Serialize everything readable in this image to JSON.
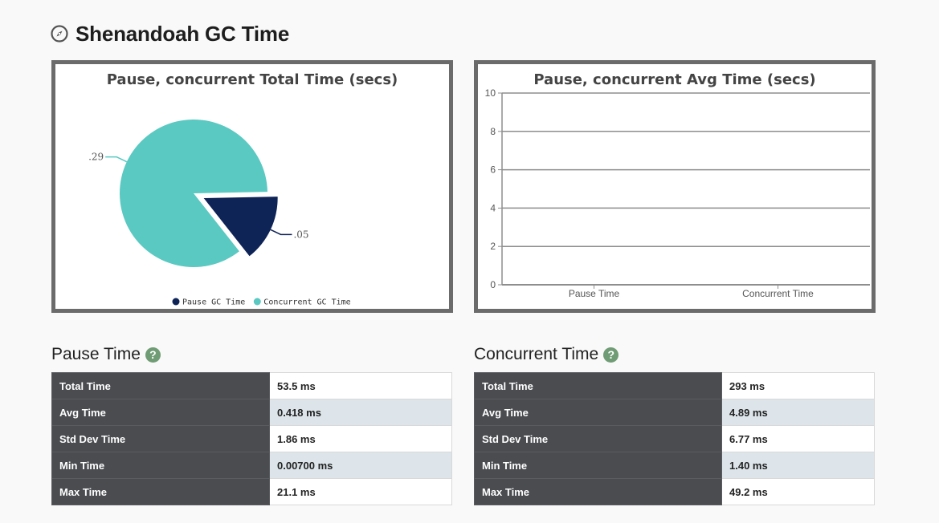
{
  "header": {
    "title": "Shenandoah GC Time",
    "icon": "compass-icon"
  },
  "pie_chart": {
    "chart_data": {
      "type": "pie",
      "title": "Pause, concurrent Total Time (secs)",
      "slices": [
        {
          "name": "Pause GC Time",
          "value": 0.05,
          "label": ".05",
          "color": "#0e2356"
        },
        {
          "name": "Concurrent GC Time",
          "value": 0.29,
          "label": ".29",
          "color": "#5ac9c2"
        }
      ],
      "legend_position": "bottom"
    }
  },
  "bar_chart": {
    "chart_data": {
      "type": "bar",
      "title": "Pause, concurrent Avg Time (secs)",
      "categories": [
        "Pause Time",
        "Concurrent Time"
      ],
      "values": [
        0,
        0
      ],
      "ylim": [
        0,
        10
      ],
      "yticks": [
        "0",
        "2",
        "4",
        "6",
        "8",
        "10"
      ],
      "grid": true
    }
  },
  "pause_section": {
    "title": "Pause Time",
    "rows": [
      {
        "label": "Total Time",
        "value": "53.5 ms"
      },
      {
        "label": "Avg Time",
        "value": "0.418 ms"
      },
      {
        "label": "Std Dev Time",
        "value": "1.86 ms"
      },
      {
        "label": "Min Time",
        "value": "0.00700 ms"
      },
      {
        "label": "Max Time",
        "value": "21.1 ms"
      }
    ]
  },
  "concurrent_section": {
    "title": "Concurrent Time",
    "rows": [
      {
        "label": "Total Time",
        "value": "293 ms"
      },
      {
        "label": "Avg Time",
        "value": "4.89 ms"
      },
      {
        "label": "Std Dev Time",
        "value": "6.77 ms"
      },
      {
        "label": "Min Time",
        "value": "1.40 ms"
      },
      {
        "label": "Max Time",
        "value": "49.2 ms"
      }
    ]
  },
  "help_glyph": "?"
}
